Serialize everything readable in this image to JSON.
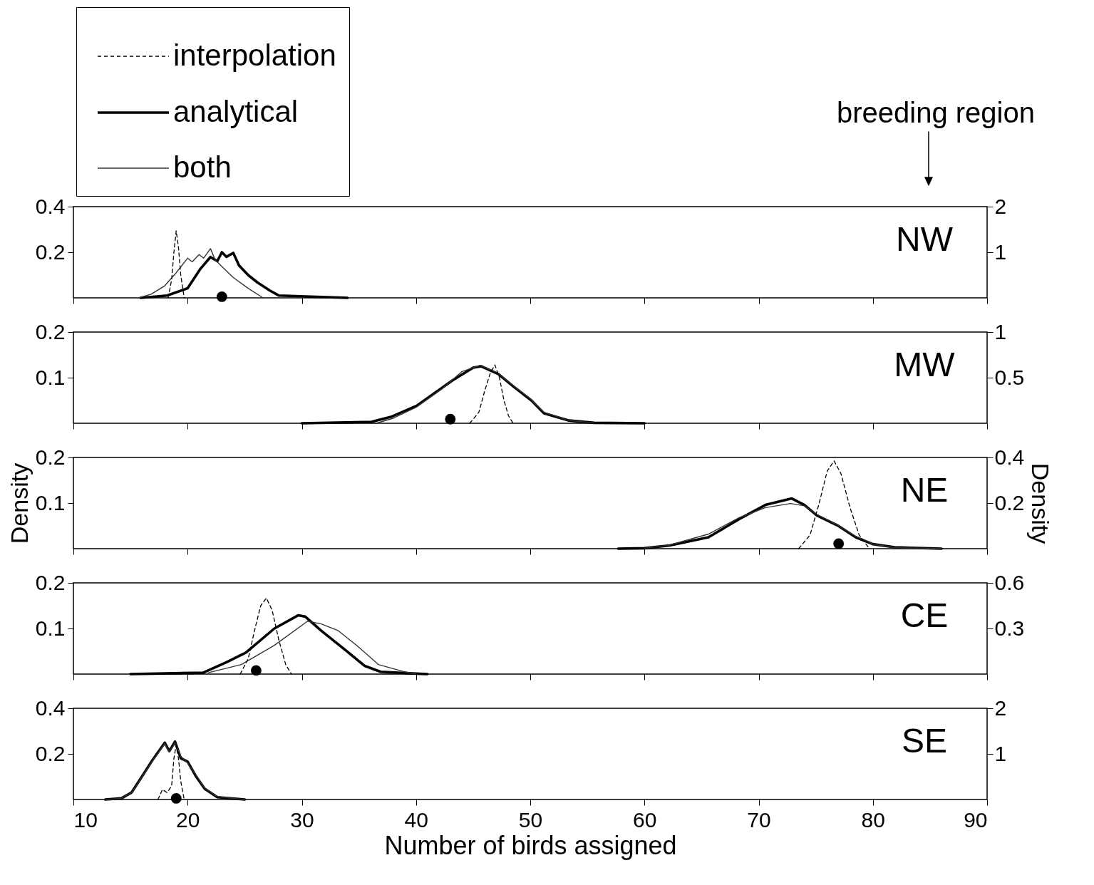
{
  "chart_data": [
    {
      "type": "line",
      "title": "NW",
      "xlim": [
        10,
        90
      ],
      "xticks": [
        10,
        20,
        30,
        40,
        50,
        60,
        70,
        80,
        90
      ],
      "ylim": [
        0,
        0.4
      ],
      "yticks": [
        0.2,
        0.4
      ],
      "y2lim": [
        0,
        2
      ],
      "y2ticks": [
        1,
        2
      ],
      "tick_labels": "y",
      "grid": false,
      "legend": "top left",
      "annotations": [
        "breeding region"
      ],
      "series": [
        {
          "name": "interpolation",
          "color": "#000000",
          "line_style": "dashed",
          "axis": "y2",
          "x": [
            18.3,
            18.6,
            18.8,
            19.0,
            19.2,
            19.4,
            19.7
          ],
          "values": [
            0,
            0.4,
            1.0,
            1.47,
            1.1,
            0.5,
            0
          ]
        },
        {
          "name": "analytical",
          "color": "#000000",
          "line_style": "solid",
          "x": [
            15.9,
            18.2,
            20,
            21.1,
            22,
            22.6,
            23,
            23.4,
            24,
            24.5,
            25.3,
            26.1,
            27.2,
            28,
            34
          ],
          "values": [
            0,
            0.01,
            0.042,
            0.126,
            0.179,
            0.161,
            0.2,
            0.18,
            0.197,
            0.142,
            0.1,
            0.068,
            0.032,
            0.01,
            0
          ]
        },
        {
          "name": "both",
          "color": "#333333",
          "line_style": "solid",
          "x": [
            15.7,
            16.8,
            18,
            19,
            20,
            20.4,
            21,
            21.4,
            22,
            22.4,
            22.9,
            24,
            25.3,
            26.6
          ],
          "values": [
            0,
            0.016,
            0.053,
            0.11,
            0.174,
            0.158,
            0.19,
            0.174,
            0.216,
            0.168,
            0.142,
            0.089,
            0.042,
            0
          ]
        },
        {
          "type": "scatter",
          "color": "#000000",
          "marker": "circle",
          "x": [
            23
          ],
          "values": [
            0.005
          ]
        }
      ]
    },
    {
      "type": "line",
      "title": "MW",
      "xlim": [
        10,
        90
      ],
      "xticks": [
        10,
        20,
        30,
        40,
        50,
        60,
        70,
        80,
        90
      ],
      "ylim": [
        0,
        0.2
      ],
      "yticks": [
        0.1,
        0.2
      ],
      "y2lim": [
        0,
        1
      ],
      "y2ticks": [
        0.5,
        1
      ],
      "tick_labels": "y",
      "grid": false,
      "series": [
        {
          "color": "#000000",
          "line_style": "dashed",
          "axis": "y2",
          "x": [
            44.7,
            45.5,
            46.0,
            46.5,
            46.9,
            47.3,
            47.7,
            48.1,
            48.5
          ],
          "values": [
            0,
            0.12,
            0.35,
            0.55,
            0.64,
            0.5,
            0.25,
            0.08,
            0
          ]
        },
        {
          "color": "#000000",
          "line_style": "solid",
          "x": [
            30,
            36.1,
            37.8,
            40.1,
            42.3,
            43.2,
            45,
            45.7,
            47.2,
            48.5,
            50.1,
            51.2,
            53.4,
            55.6,
            60
          ],
          "values": [
            0,
            0.003,
            0.014,
            0.039,
            0.078,
            0.094,
            0.122,
            0.125,
            0.108,
            0.081,
            0.05,
            0.022,
            0.006,
            0.001,
            0
          ]
        },
        {
          "color": "#333333",
          "line_style": "solid",
          "x": [
            36.5,
            38,
            40,
            42.3,
            44,
            45.6,
            47.2,
            48.5,
            50,
            51.2,
            53.4,
            55.6
          ],
          "values": [
            0,
            0.011,
            0.035,
            0.076,
            0.113,
            0.127,
            0.11,
            0.083,
            0.054,
            0.024,
            0.006,
            0.001
          ]
        },
        {
          "type": "scatter",
          "color": "#000000",
          "marker": "circle",
          "x": [
            43
          ],
          "values": [
            0.009
          ]
        }
      ]
    },
    {
      "type": "line",
      "title": "NE",
      "xlim": [
        10,
        90
      ],
      "xticks": [
        10,
        20,
        30,
        40,
        50,
        60,
        70,
        80,
        90
      ],
      "ylim": [
        0,
        0.2
      ],
      "yticks": [
        0.1,
        0.2
      ],
      "y2lim": [
        0,
        0.4
      ],
      "y2ticks": [
        0.2,
        0.4
      ],
      "tick_labels": "y",
      "grid": false,
      "ylabel": "Density",
      "y2label": "Density",
      "series": [
        {
          "color": "#000000",
          "line_style": "dashed",
          "axis": "y2",
          "x": [
            73.5,
            74.5,
            75.3,
            76.0,
            76.6,
            77.2,
            78.0,
            78.8,
            79.7
          ],
          "values": [
            0,
            0.06,
            0.2,
            0.34,
            0.385,
            0.33,
            0.18,
            0.06,
            0
          ]
        },
        {
          "color": "#000000",
          "line_style": "solid",
          "x": [
            57.7,
            60,
            62.2,
            65.6,
            68.3,
            70.6,
            72.9,
            74,
            75.1,
            76.9,
            78.5,
            80,
            81.9,
            86
          ],
          "values": [
            0,
            0.001,
            0.007,
            0.025,
            0.065,
            0.096,
            0.11,
            0.096,
            0.073,
            0.051,
            0.025,
            0.01,
            0.003,
            0
          ]
        },
        {
          "color": "#333333",
          "line_style": "solid",
          "x": [
            60,
            62.2,
            65.6,
            68.3,
            70.6,
            72.8,
            74,
            75.1,
            76.9,
            78.5,
            80,
            82,
            86
          ],
          "values": [
            0.001,
            0.008,
            0.032,
            0.068,
            0.09,
            0.099,
            0.094,
            0.075,
            0.052,
            0.027,
            0.01,
            0.002,
            0
          ]
        },
        {
          "type": "scatter",
          "color": "#000000",
          "marker": "circle",
          "x": [
            77
          ],
          "values": [
            0.011
          ]
        }
      ]
    },
    {
      "type": "line",
      "title": "CE",
      "xlim": [
        10,
        90
      ],
      "xticks": [
        10,
        20,
        30,
        40,
        50,
        60,
        70,
        80,
        90
      ],
      "ylim": [
        0,
        0.2
      ],
      "yticks": [
        0.1,
        0.2
      ],
      "y2lim": [
        0,
        0.6
      ],
      "y2ticks": [
        0.3,
        0.6
      ],
      "tick_labels": "y",
      "grid": false,
      "series": [
        {
          "color": "#000000",
          "line_style": "dashed",
          "axis": "y2",
          "x": [
            24.6,
            25.3,
            25.9,
            26.4,
            26.9,
            27.4,
            28.0,
            28.6,
            29.1
          ],
          "values": [
            0,
            0.1,
            0.3,
            0.45,
            0.5,
            0.42,
            0.22,
            0.06,
            0
          ]
        },
        {
          "color": "#000000",
          "line_style": "solid",
          "x": [
            15,
            21.35,
            23.4,
            25.1,
            27.6,
            29.7,
            30.3,
            31.7,
            33.8,
            35.5,
            36.9,
            40,
            41
          ],
          "values": [
            0,
            0.003,
            0.026,
            0.047,
            0.1,
            0.129,
            0.126,
            0.095,
            0.053,
            0.018,
            0.005,
            0.001,
            0
          ]
        },
        {
          "color": "#333333",
          "line_style": "solid",
          "x": [
            21.8,
            24.7,
            27.6,
            30.5,
            31.7,
            33.2,
            34.8,
            36.7,
            39,
            40
          ],
          "values": [
            0.003,
            0.021,
            0.063,
            0.116,
            0.11,
            0.095,
            0.063,
            0.021,
            0.005,
            0
          ]
        },
        {
          "type": "scatter",
          "color": "#000000",
          "marker": "circle",
          "x": [
            26
          ],
          "values": [
            0.008
          ]
        }
      ]
    },
    {
      "type": "line",
      "title": "SE",
      "xlim": [
        10,
        90
      ],
      "xticks": [
        10,
        20,
        30,
        40,
        50,
        60,
        70,
        80,
        90
      ],
      "ylim": [
        0,
        0.4
      ],
      "yticks": [
        0.2,
        0.4
      ],
      "y2lim": [
        0,
        2
      ],
      "y2ticks": [
        1,
        2
      ],
      "grid": false,
      "xlabel": "Number of birds assigned",
      "series": [
        {
          "color": "#000000",
          "line_style": "dashed",
          "axis": "y2",
          "x": [
            17.4,
            17.8,
            18.2,
            18.6,
            18.8,
            19.0,
            19.2,
            19.4,
            19.7
          ],
          "values": [
            0,
            0.22,
            0.15,
            0.3,
            0.9,
            1.19,
            0.9,
            0.4,
            0
          ]
        },
        {
          "color": "#000000",
          "line_style": "solid",
          "x": [
            12.8,
            14.2,
            15.1,
            15.9,
            16.9,
            18,
            18.4,
            18.9,
            19.4,
            20,
            20.7,
            21.5,
            22.6,
            25
          ],
          "values": [
            0,
            0.005,
            0.031,
            0.093,
            0.171,
            0.249,
            0.212,
            0.254,
            0.181,
            0.166,
            0.104,
            0.047,
            0.01,
            0
          ]
        },
        {
          "color": "#333333",
          "line_style": "solid",
          "x": [
            12.8,
            14.2,
            15.1,
            15.9,
            16.9,
            18,
            18.4,
            18.9,
            19.4,
            20,
            20.7,
            21.5,
            22.6,
            25
          ],
          "values": [
            0,
            0.005,
            0.03,
            0.09,
            0.168,
            0.245,
            0.21,
            0.25,
            0.19,
            0.16,
            0.11,
            0.05,
            0.012,
            0
          ]
        },
        {
          "type": "scatter",
          "color": "#000000",
          "marker": "circle",
          "x": [
            19
          ],
          "values": [
            0.005
          ]
        }
      ]
    }
  ]
}
